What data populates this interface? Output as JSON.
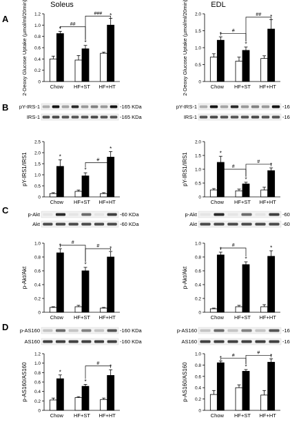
{
  "columns": [
    "Soleus",
    "EDL"
  ],
  "panel_letters": [
    "A",
    "B",
    "C",
    "D"
  ],
  "categories": [
    "Chow",
    "HF+ST",
    "HF+HT"
  ],
  "colors": {
    "basal": "#ffffff",
    "insulin": "#000000",
    "stroke": "#000000"
  },
  "blots": {
    "B": {
      "rows": [
        "pY-IRS-1",
        "IRS-1"
      ],
      "size": "-165 KDa"
    },
    "C": {
      "rows": [
        "p-Akt",
        "Akt"
      ],
      "size": "-60 KDa"
    },
    "D": {
      "rows": [
        "p-AS160",
        "AS160"
      ],
      "size": "-160 KDa"
    }
  },
  "chart_data": [
    {
      "type": "bar",
      "panel": "A",
      "column": "Soleus",
      "ylabel": "2-Deoxy Glucose Uptake (µmol/ml/20min)",
      "ylim": [
        0,
        1.2
      ],
      "ticks": [
        "0",
        "0.2",
        "0.4",
        "0.6",
        "0.8",
        "1.0",
        "1.2"
      ],
      "tick_values": [
        0,
        0.2,
        0.4,
        0.6,
        0.8,
        1.0,
        1.2
      ],
      "categories": [
        "Chow",
        "HF+ST",
        "HF+HT"
      ],
      "series": [
        {
          "values": [
            0.4,
            0.38,
            0.5
          ],
          "err": [
            0.05,
            0.08,
            0.02
          ]
        },
        {
          "values": [
            0.85,
            0.58,
            1.0
          ],
          "err": [
            0.04,
            0.06,
            0.12
          ]
        }
      ],
      "stars": [
        "*",
        "*",
        "*"
      ],
      "brackets": [
        {
          "from": 0,
          "to": 1,
          "label": "##",
          "level": 0.97
        },
        {
          "from": 1,
          "to": 2,
          "label": "###",
          "level": 1.16
        }
      ]
    },
    {
      "type": "bar",
      "panel": "A",
      "column": "EDL",
      "ylabel": "2-Deoxy Glucose Uptake (µmol/ml/20min)",
      "ylim": [
        0,
        2.0
      ],
      "ticks": [
        "0",
        "0.5",
        "1.0",
        "1.5",
        "2.0"
      ],
      "tick_values": [
        0,
        0.5,
        1.0,
        1.5,
        2.0
      ],
      "categories": [
        "Chow",
        "HF+ST",
        "HF+HT"
      ],
      "series": [
        {
          "values": [
            0.72,
            0.6,
            0.68
          ],
          "err": [
            0.1,
            0.12,
            0.08
          ]
        },
        {
          "values": [
            1.22,
            0.92,
            1.55
          ],
          "err": [
            0.1,
            0.1,
            0.28
          ]
        }
      ],
      "stars": [
        "*",
        "*",
        "*"
      ],
      "brackets": [
        {
          "from": 0,
          "to": 1,
          "label": "#",
          "level": 1.42
        },
        {
          "from": 1,
          "to": 2,
          "label": "##",
          "level": 1.9
        }
      ]
    },
    {
      "type": "bar",
      "panel": "B",
      "column": "Soleus",
      "ylabel": "pY-IRS1/IRS1",
      "ylim": [
        0,
        2.5
      ],
      "ticks": [
        "0",
        "0.5",
        "1.0",
        "1.5",
        "2.0",
        "2.5"
      ],
      "tick_values": [
        0,
        0.5,
        1.0,
        1.5,
        2.0,
        2.5
      ],
      "categories": [
        "Chow",
        "HF+ST",
        "HF+HT"
      ],
      "series": [
        {
          "values": [
            0.15,
            0.25,
            0.15
          ],
          "err": [
            0.04,
            0.06,
            0.04
          ]
        },
        {
          "values": [
            1.38,
            0.95,
            1.8
          ],
          "err": [
            0.3,
            0.14,
            0.25
          ]
        }
      ],
      "stars": [
        "*",
        "*",
        "*"
      ],
      "brackets": [
        {
          "from": 1,
          "to": 2,
          "label": "#",
          "level": 1.55
        }
      ]
    },
    {
      "type": "bar",
      "panel": "B",
      "column": "EDL",
      "ylabel": "pY-IRS1/IRS1",
      "ylim": [
        0,
        2.0
      ],
      "ticks": [
        "0",
        "0.5",
        "1.0",
        "1.5",
        "2.0"
      ],
      "tick_values": [
        0,
        0.5,
        1.0,
        1.5,
        2.0
      ],
      "categories": [
        "Chow",
        "HF+ST",
        "HF+HT"
      ],
      "series": [
        {
          "values": [
            0.25,
            0.22,
            0.25
          ],
          "err": [
            0.05,
            0.06,
            0.1
          ]
        },
        {
          "values": [
            1.25,
            0.47,
            0.95
          ],
          "err": [
            0.22,
            0.06,
            0.1
          ]
        }
      ],
      "stars": [
        "*",
        "*",
        "*"
      ],
      "brackets": [
        {
          "from": 0,
          "to": 1,
          "label": "#",
          "level": 1.0
        },
        {
          "from": 1,
          "to": 2,
          "label": "#",
          "level": 1.18
        }
      ]
    },
    {
      "type": "bar",
      "panel": "C",
      "column": "Soleus",
      "ylabel": "p-Akt/Akt",
      "ylim": [
        0,
        1.0
      ],
      "ticks": [
        "0",
        "0.2",
        "0.4",
        "0.6",
        "0.8",
        "1.0"
      ],
      "tick_values": [
        0,
        0.2,
        0.4,
        0.6,
        0.8,
        1.0
      ],
      "categories": [
        "Chow",
        "HF+ST",
        "HF+HT"
      ],
      "series": [
        {
          "values": [
            0.07,
            0.08,
            0.06
          ],
          "err": [
            0.01,
            0.02,
            0.01
          ]
        },
        {
          "values": [
            0.86,
            0.6,
            0.8
          ],
          "err": [
            0.06,
            0.05,
            0.08
          ]
        }
      ],
      "stars": [
        "*",
        "*",
        "*"
      ],
      "brackets": [
        {
          "from": 0,
          "to": 1,
          "label": "#",
          "level": 0.97
        },
        {
          "from": 1,
          "to": 2,
          "label": "#",
          "level": 0.92
        }
      ]
    },
    {
      "type": "bar",
      "panel": "C",
      "column": "EDL",
      "ylabel": "p-Akt/Akt",
      "ylim": [
        0,
        1.0
      ],
      "ticks": [
        "0",
        "0.2",
        "0.4",
        "0.6",
        "0.8",
        "1.0"
      ],
      "tick_values": [
        0,
        0.2,
        0.4,
        0.6,
        0.8,
        1.0
      ],
      "categories": [
        "Chow",
        "HF+ST",
        "HF+HT"
      ],
      "series": [
        {
          "values": [
            0.05,
            0.08,
            0.08
          ],
          "err": [
            0.01,
            0.02,
            0.03
          ]
        },
        {
          "values": [
            0.83,
            0.69,
            0.81
          ],
          "err": [
            0.04,
            0.04,
            0.08
          ]
        }
      ],
      "stars": [
        "*",
        "*",
        "*"
      ],
      "brackets": [
        {
          "from": 0,
          "to": 1,
          "label": "#",
          "level": 0.93
        }
      ]
    },
    {
      "type": "bar",
      "panel": "D",
      "column": "Soleus",
      "ylabel": "p-AS160/AS160",
      "ylim": [
        0,
        1.2
      ],
      "ticks": [
        "0",
        "0.2",
        "0.4",
        "0.6",
        "0.8",
        "1.0",
        "1.2"
      ],
      "tick_values": [
        0,
        0.2,
        0.4,
        0.6,
        0.8,
        1.0,
        1.2
      ],
      "categories": [
        "Chow",
        "HF+ST",
        "HF+HT"
      ],
      "series": [
        {
          "values": [
            0.22,
            0.27,
            0.23
          ],
          "err": [
            0.04,
            0.02,
            0.03
          ]
        },
        {
          "values": [
            0.67,
            0.51,
            0.74
          ],
          "err": [
            0.08,
            0.04,
            0.12
          ]
        }
      ],
      "stars": [
        "*",
        "*",
        "*"
      ],
      "brackets": [
        {
          "from": 1,
          "to": 2,
          "label": "#",
          "level": 0.94
        }
      ]
    },
    {
      "type": "bar",
      "panel": "D",
      "column": "EDL",
      "ylabel": "p-AS160/AS160",
      "ylim": [
        0,
        1.0
      ],
      "ticks": [
        "0",
        "0.2",
        "0.4",
        "0.6",
        "0.8",
        "1.0"
      ],
      "tick_values": [
        0,
        0.2,
        0.4,
        0.6,
        0.8,
        1.0
      ],
      "categories": [
        "Chow",
        "HF+ST",
        "HF+HT"
      ],
      "series": [
        {
          "values": [
            0.28,
            0.4,
            0.27
          ],
          "err": [
            0.07,
            0.05,
            0.08
          ]
        },
        {
          "values": [
            0.84,
            0.69,
            0.85
          ],
          "err": [
            0.03,
            0.03,
            0.06
          ]
        }
      ],
      "stars": [
        "*",
        "*",
        "*"
      ],
      "brackets": [
        {
          "from": 0,
          "to": 1,
          "label": "#",
          "level": 0.92
        },
        {
          "from": 1,
          "to": 2,
          "label": "#",
          "level": 0.97
        }
      ]
    }
  ]
}
